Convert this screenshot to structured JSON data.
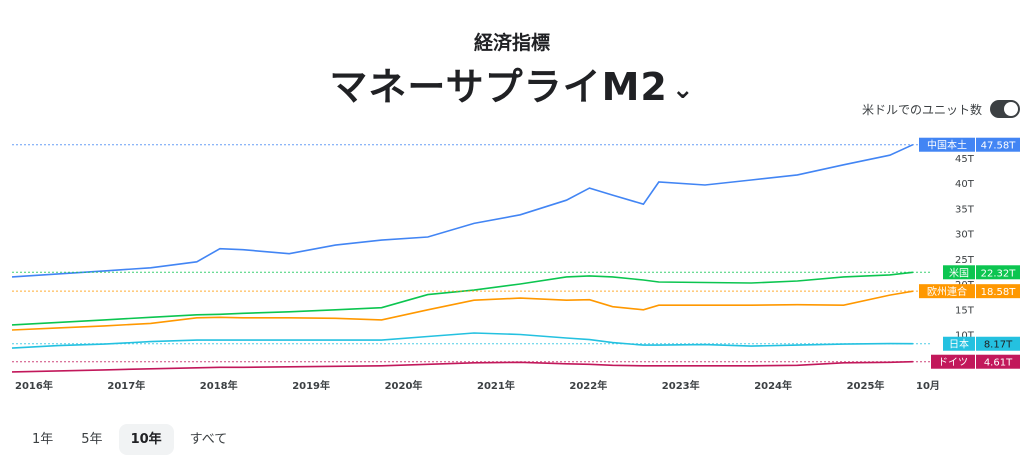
{
  "header": {
    "kicker": "経済指標",
    "title": "マネーサプライM2",
    "chevron_icon": "chevron-down-icon"
  },
  "toggle": {
    "label": "米ドルでのユニット数",
    "on": true
  },
  "range_tabs": [
    {
      "label": "1年"
    },
    {
      "label": "5年"
    },
    {
      "label": "10年",
      "selected": true
    },
    {
      "label": "すべて"
    }
  ],
  "chart_data": {
    "type": "line",
    "ylim": [
      0,
      50
    ],
    "yticks": [
      "10T",
      "15T",
      "20T",
      "25T",
      "30T",
      "35T",
      "40T",
      "45T"
    ],
    "ytick_values": [
      10,
      15,
      20,
      25,
      30,
      35,
      40,
      45
    ],
    "xticks": [
      "2016年",
      "2017年",
      "2018年",
      "2019年",
      "2020年",
      "2021年",
      "2022年",
      "2023年",
      "2024年",
      "2025年",
      "10月"
    ],
    "x": [
      "2016-01",
      "2016-07",
      "2017-01",
      "2017-07",
      "2018-01",
      "2018-04",
      "2018-07",
      "2019-01",
      "2019-07",
      "2020-01",
      "2020-07",
      "2021-01",
      "2021-07",
      "2022-01",
      "2022-04",
      "2022-07",
      "2022-11",
      "2023-01",
      "2023-07",
      "2024-01",
      "2024-07",
      "2025-01",
      "2025-07",
      "2025-10"
    ],
    "series": [
      {
        "name": "中国本土",
        "last": "47.58T",
        "color": "#4285f4",
        "values": [
          21.4,
          22.0,
          22.6,
          23.2,
          24.4,
          27.0,
          26.8,
          26.0,
          27.7,
          28.7,
          29.3,
          32.0,
          33.7,
          36.6,
          39.0,
          37.6,
          35.8,
          40.2,
          39.6,
          40.6,
          41.6,
          43.6,
          45.5,
          47.58
        ]
      },
      {
        "name": "米国",
        "last": "22.32T",
        "color": "#0cc550",
        "values": [
          11.9,
          12.4,
          12.9,
          13.4,
          13.9,
          14.0,
          14.2,
          14.5,
          14.9,
          15.3,
          17.9,
          18.8,
          20.0,
          21.4,
          21.6,
          21.4,
          20.8,
          20.4,
          20.3,
          20.2,
          20.6,
          21.4,
          21.8,
          22.32
        ]
      },
      {
        "name": "欧州連合",
        "last": "18.58T",
        "color": "#ff9800",
        "values": [
          10.9,
          11.3,
          11.7,
          12.2,
          13.3,
          13.4,
          13.3,
          13.3,
          13.2,
          12.9,
          14.9,
          16.8,
          17.2,
          16.8,
          16.9,
          15.5,
          14.9,
          15.8,
          15.8,
          15.8,
          15.9,
          15.8,
          17.8,
          18.58
        ]
      },
      {
        "name": "日本",
        "last": "8.17T",
        "color": "#24c1e0",
        "values": [
          7.3,
          7.8,
          8.1,
          8.6,
          8.9,
          8.9,
          8.9,
          8.9,
          8.9,
          8.9,
          9.6,
          10.3,
          10.0,
          9.3,
          9.0,
          8.4,
          7.9,
          7.9,
          8.0,
          7.7,
          7.9,
          8.1,
          8.2,
          8.17
        ]
      },
      {
        "name": "ドイツ",
        "last": "4.61T",
        "color": "#c2185b",
        "values": [
          2.6,
          2.8,
          3.0,
          3.2,
          3.4,
          3.5,
          3.5,
          3.6,
          3.7,
          3.8,
          4.1,
          4.4,
          4.5,
          4.2,
          4.1,
          3.9,
          3.8,
          3.8,
          3.8,
          3.8,
          3.9,
          4.4,
          4.5,
          4.61
        ]
      }
    ]
  }
}
